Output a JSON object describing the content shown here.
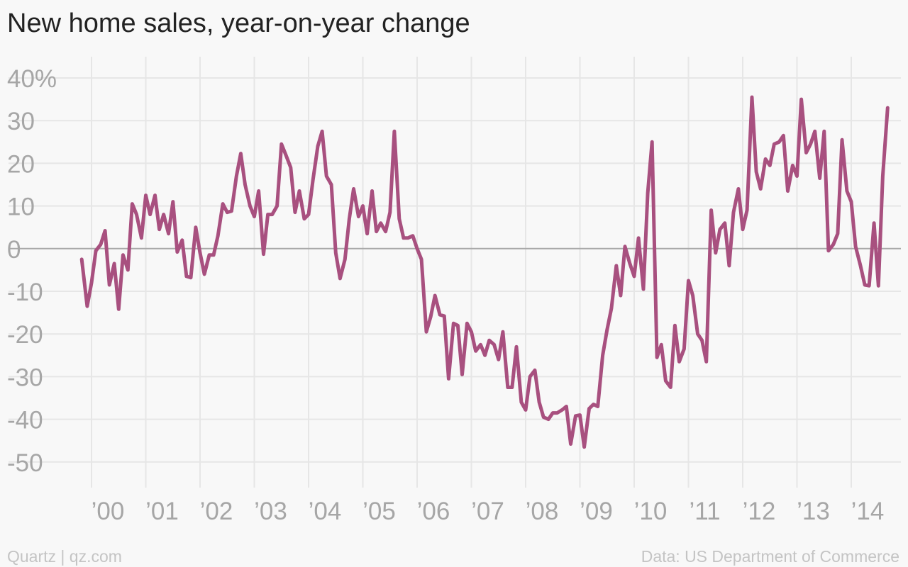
{
  "footer": {
    "credit": "Quartz | qz.com",
    "source": "Data: US Department of Commerce"
  },
  "colors": {
    "line": "#a8507f",
    "grid": "#e6e6e6",
    "zero_line": "#a8a8a8",
    "tick_label": "#a6a6a6",
    "title": "#222222"
  },
  "chart_data": {
    "type": "line",
    "title": "New home sales, year-on-year change",
    "xlabel": "",
    "ylabel": "",
    "ylim": [
      -55,
      42
    ],
    "y_ticks": [
      40,
      30,
      20,
      10,
      0,
      -10,
      -20,
      -30,
      -40,
      -50
    ],
    "y_tick_labels": [
      "40%",
      "30",
      "20",
      "10",
      "0",
      "-10",
      "-20",
      "-30",
      "-40",
      "-50"
    ],
    "x_ticks": [
      2000,
      2001,
      2002,
      2003,
      2004,
      2005,
      2006,
      2007,
      2008,
      2009,
      2010,
      2011,
      2012,
      2013,
      2014
    ],
    "x_tick_labels": [
      "’00",
      "’01",
      "’02",
      "’03",
      "’04",
      "’05",
      "’06",
      "’07",
      "’08",
      "’09",
      "’10",
      "’11",
      "’12",
      "’13",
      "’14"
    ],
    "xlim": [
      1999.82,
      2014.58
    ],
    "grid": true,
    "series": [
      {
        "points": [
          [
            1999.82,
            -2.5
          ],
          [
            1999.92,
            -13.5
          ],
          [
            2000.0,
            -8
          ],
          [
            2000.08,
            -0.5
          ],
          [
            2000.17,
            1
          ],
          [
            2000.25,
            4.2
          ],
          [
            2000.33,
            -8.5
          ],
          [
            2000.42,
            -3.5
          ],
          [
            2000.5,
            -14.2
          ],
          [
            2000.58,
            -1.5
          ],
          [
            2000.67,
            -5
          ],
          [
            2000.75,
            10.5
          ],
          [
            2000.83,
            8
          ],
          [
            2000.92,
            2.5
          ],
          [
            2001.0,
            12.5
          ],
          [
            2001.08,
            8
          ],
          [
            2001.17,
            12.5
          ],
          [
            2001.25,
            4.5
          ],
          [
            2001.33,
            8
          ],
          [
            2001.42,
            3.5
          ],
          [
            2001.5,
            11
          ],
          [
            2001.58,
            -0.8
          ],
          [
            2001.67,
            2
          ],
          [
            2001.75,
            -6.5
          ],
          [
            2001.83,
            -6.8
          ],
          [
            2001.92,
            5
          ],
          [
            2002.0,
            -1
          ],
          [
            2002.08,
            -6
          ],
          [
            2002.17,
            -1.5
          ],
          [
            2002.25,
            -1.5
          ],
          [
            2002.33,
            3
          ],
          [
            2002.42,
            10.5
          ],
          [
            2002.5,
            8.5
          ],
          [
            2002.58,
            8.8
          ],
          [
            2002.67,
            17
          ],
          [
            2002.75,
            22.3
          ],
          [
            2002.83,
            15
          ],
          [
            2002.92,
            10
          ],
          [
            2003.0,
            7.5
          ],
          [
            2003.08,
            13.5
          ],
          [
            2003.17,
            -1.3
          ],
          [
            2003.25,
            8
          ],
          [
            2003.33,
            8
          ],
          [
            2003.42,
            10
          ],
          [
            2003.5,
            24.5
          ],
          [
            2003.58,
            22
          ],
          [
            2003.67,
            19
          ],
          [
            2003.75,
            8.5
          ],
          [
            2003.83,
            13.5
          ],
          [
            2003.92,
            7
          ],
          [
            2004.0,
            8
          ],
          [
            2004.08,
            16
          ],
          [
            2004.17,
            24
          ],
          [
            2004.25,
            27.5
          ],
          [
            2004.33,
            17
          ],
          [
            2004.42,
            15
          ],
          [
            2004.5,
            -1
          ],
          [
            2004.58,
            -7
          ],
          [
            2004.67,
            -2.5
          ],
          [
            2004.75,
            7
          ],
          [
            2004.83,
            14
          ],
          [
            2004.92,
            7.5
          ],
          [
            2005.0,
            10
          ],
          [
            2005.08,
            3.5
          ],
          [
            2005.17,
            13.5
          ],
          [
            2005.25,
            4
          ],
          [
            2005.33,
            6
          ],
          [
            2005.42,
            4
          ],
          [
            2005.5,
            8.5
          ],
          [
            2005.58,
            27.5
          ],
          [
            2005.67,
            7
          ],
          [
            2005.75,
            2.5
          ],
          [
            2005.83,
            2.5
          ],
          [
            2005.92,
            3
          ],
          [
            2006.0,
            0
          ],
          [
            2006.08,
            -2.5
          ],
          [
            2006.17,
            -19.5
          ],
          [
            2006.25,
            -16
          ],
          [
            2006.33,
            -11
          ],
          [
            2006.42,
            -15.5
          ],
          [
            2006.5,
            -15.8
          ],
          [
            2006.58,
            -30.5
          ],
          [
            2006.67,
            -17.5
          ],
          [
            2006.75,
            -18
          ],
          [
            2006.83,
            -29.5
          ],
          [
            2006.92,
            -17.5
          ],
          [
            2007.0,
            -19.5
          ],
          [
            2007.08,
            -24
          ],
          [
            2007.17,
            -22.5
          ],
          [
            2007.25,
            -25
          ],
          [
            2007.33,
            -21.5
          ],
          [
            2007.42,
            -22.5
          ],
          [
            2007.5,
            -26
          ],
          [
            2007.58,
            -19.5
          ],
          [
            2007.67,
            -32.5
          ],
          [
            2007.75,
            -32.5
          ],
          [
            2007.83,
            -23
          ],
          [
            2007.92,
            -36
          ],
          [
            2008.0,
            -37.8
          ],
          [
            2008.08,
            -30
          ],
          [
            2008.17,
            -28.5
          ],
          [
            2008.25,
            -36
          ],
          [
            2008.33,
            -39.5
          ],
          [
            2008.42,
            -40
          ],
          [
            2008.5,
            -38.5
          ],
          [
            2008.58,
            -38.5
          ],
          [
            2008.67,
            -37.8
          ],
          [
            2008.75,
            -37
          ],
          [
            2008.83,
            -45.8
          ],
          [
            2008.92,
            -39.2
          ],
          [
            2009.0,
            -39
          ],
          [
            2009.08,
            -46.5
          ],
          [
            2009.17,
            -37.5
          ],
          [
            2009.25,
            -36.5
          ],
          [
            2009.33,
            -37
          ],
          [
            2009.42,
            -25
          ],
          [
            2009.5,
            -19
          ],
          [
            2009.58,
            -14
          ],
          [
            2009.67,
            -4
          ],
          [
            2009.75,
            -11
          ],
          [
            2009.83,
            0.5
          ],
          [
            2009.92,
            -3.5
          ],
          [
            2010.0,
            -6.5
          ],
          [
            2010.08,
            2.5
          ],
          [
            2010.17,
            -9.5
          ],
          [
            2010.25,
            13
          ],
          [
            2010.33,
            25
          ],
          [
            2010.42,
            -25.5
          ],
          [
            2010.5,
            -22.5
          ],
          [
            2010.58,
            -31
          ],
          [
            2010.67,
            -32.5
          ],
          [
            2010.75,
            -18
          ],
          [
            2010.83,
            -26.5
          ],
          [
            2010.92,
            -23.5
          ],
          [
            2011.0,
            -7.5
          ],
          [
            2011.08,
            -11
          ],
          [
            2011.17,
            -20
          ],
          [
            2011.25,
            -21.5
          ],
          [
            2011.33,
            -26.5
          ],
          [
            2011.42,
            9
          ],
          [
            2011.5,
            -1
          ],
          [
            2011.58,
            4.5
          ],
          [
            2011.67,
            6
          ],
          [
            2011.75,
            -4
          ],
          [
            2011.83,
            8.5
          ],
          [
            2011.92,
            14
          ],
          [
            2012.0,
            4.5
          ],
          [
            2012.08,
            9
          ],
          [
            2012.17,
            35.5
          ],
          [
            2012.25,
            18
          ],
          [
            2012.33,
            14
          ],
          [
            2012.42,
            21
          ],
          [
            2012.5,
            19.5
          ],
          [
            2012.58,
            24.5
          ],
          [
            2012.67,
            25
          ],
          [
            2012.75,
            26.5
          ],
          [
            2012.83,
            13.5
          ],
          [
            2012.92,
            19.5
          ],
          [
            2013.0,
            17
          ],
          [
            2013.08,
            35
          ],
          [
            2013.17,
            22.5
          ],
          [
            2013.25,
            24.5
          ],
          [
            2013.33,
            27.5
          ],
          [
            2013.42,
            16.5
          ],
          [
            2013.5,
            27.5
          ],
          [
            2013.58,
            -0.5
          ],
          [
            2013.67,
            1
          ],
          [
            2013.75,
            3.5
          ],
          [
            2013.83,
            25.5
          ],
          [
            2013.92,
            13.5
          ],
          [
            2014.0,
            11
          ],
          [
            2014.08,
            0.5
          ],
          [
            2014.17,
            -4
          ],
          [
            2014.25,
            -8.5
          ],
          [
            2014.33,
            -8.7
          ],
          [
            2014.42,
            6
          ],
          [
            2014.5,
            -8.7
          ],
          [
            2014.58,
            17
          ],
          [
            2014.67,
            33
          ]
        ]
      }
    ]
  }
}
